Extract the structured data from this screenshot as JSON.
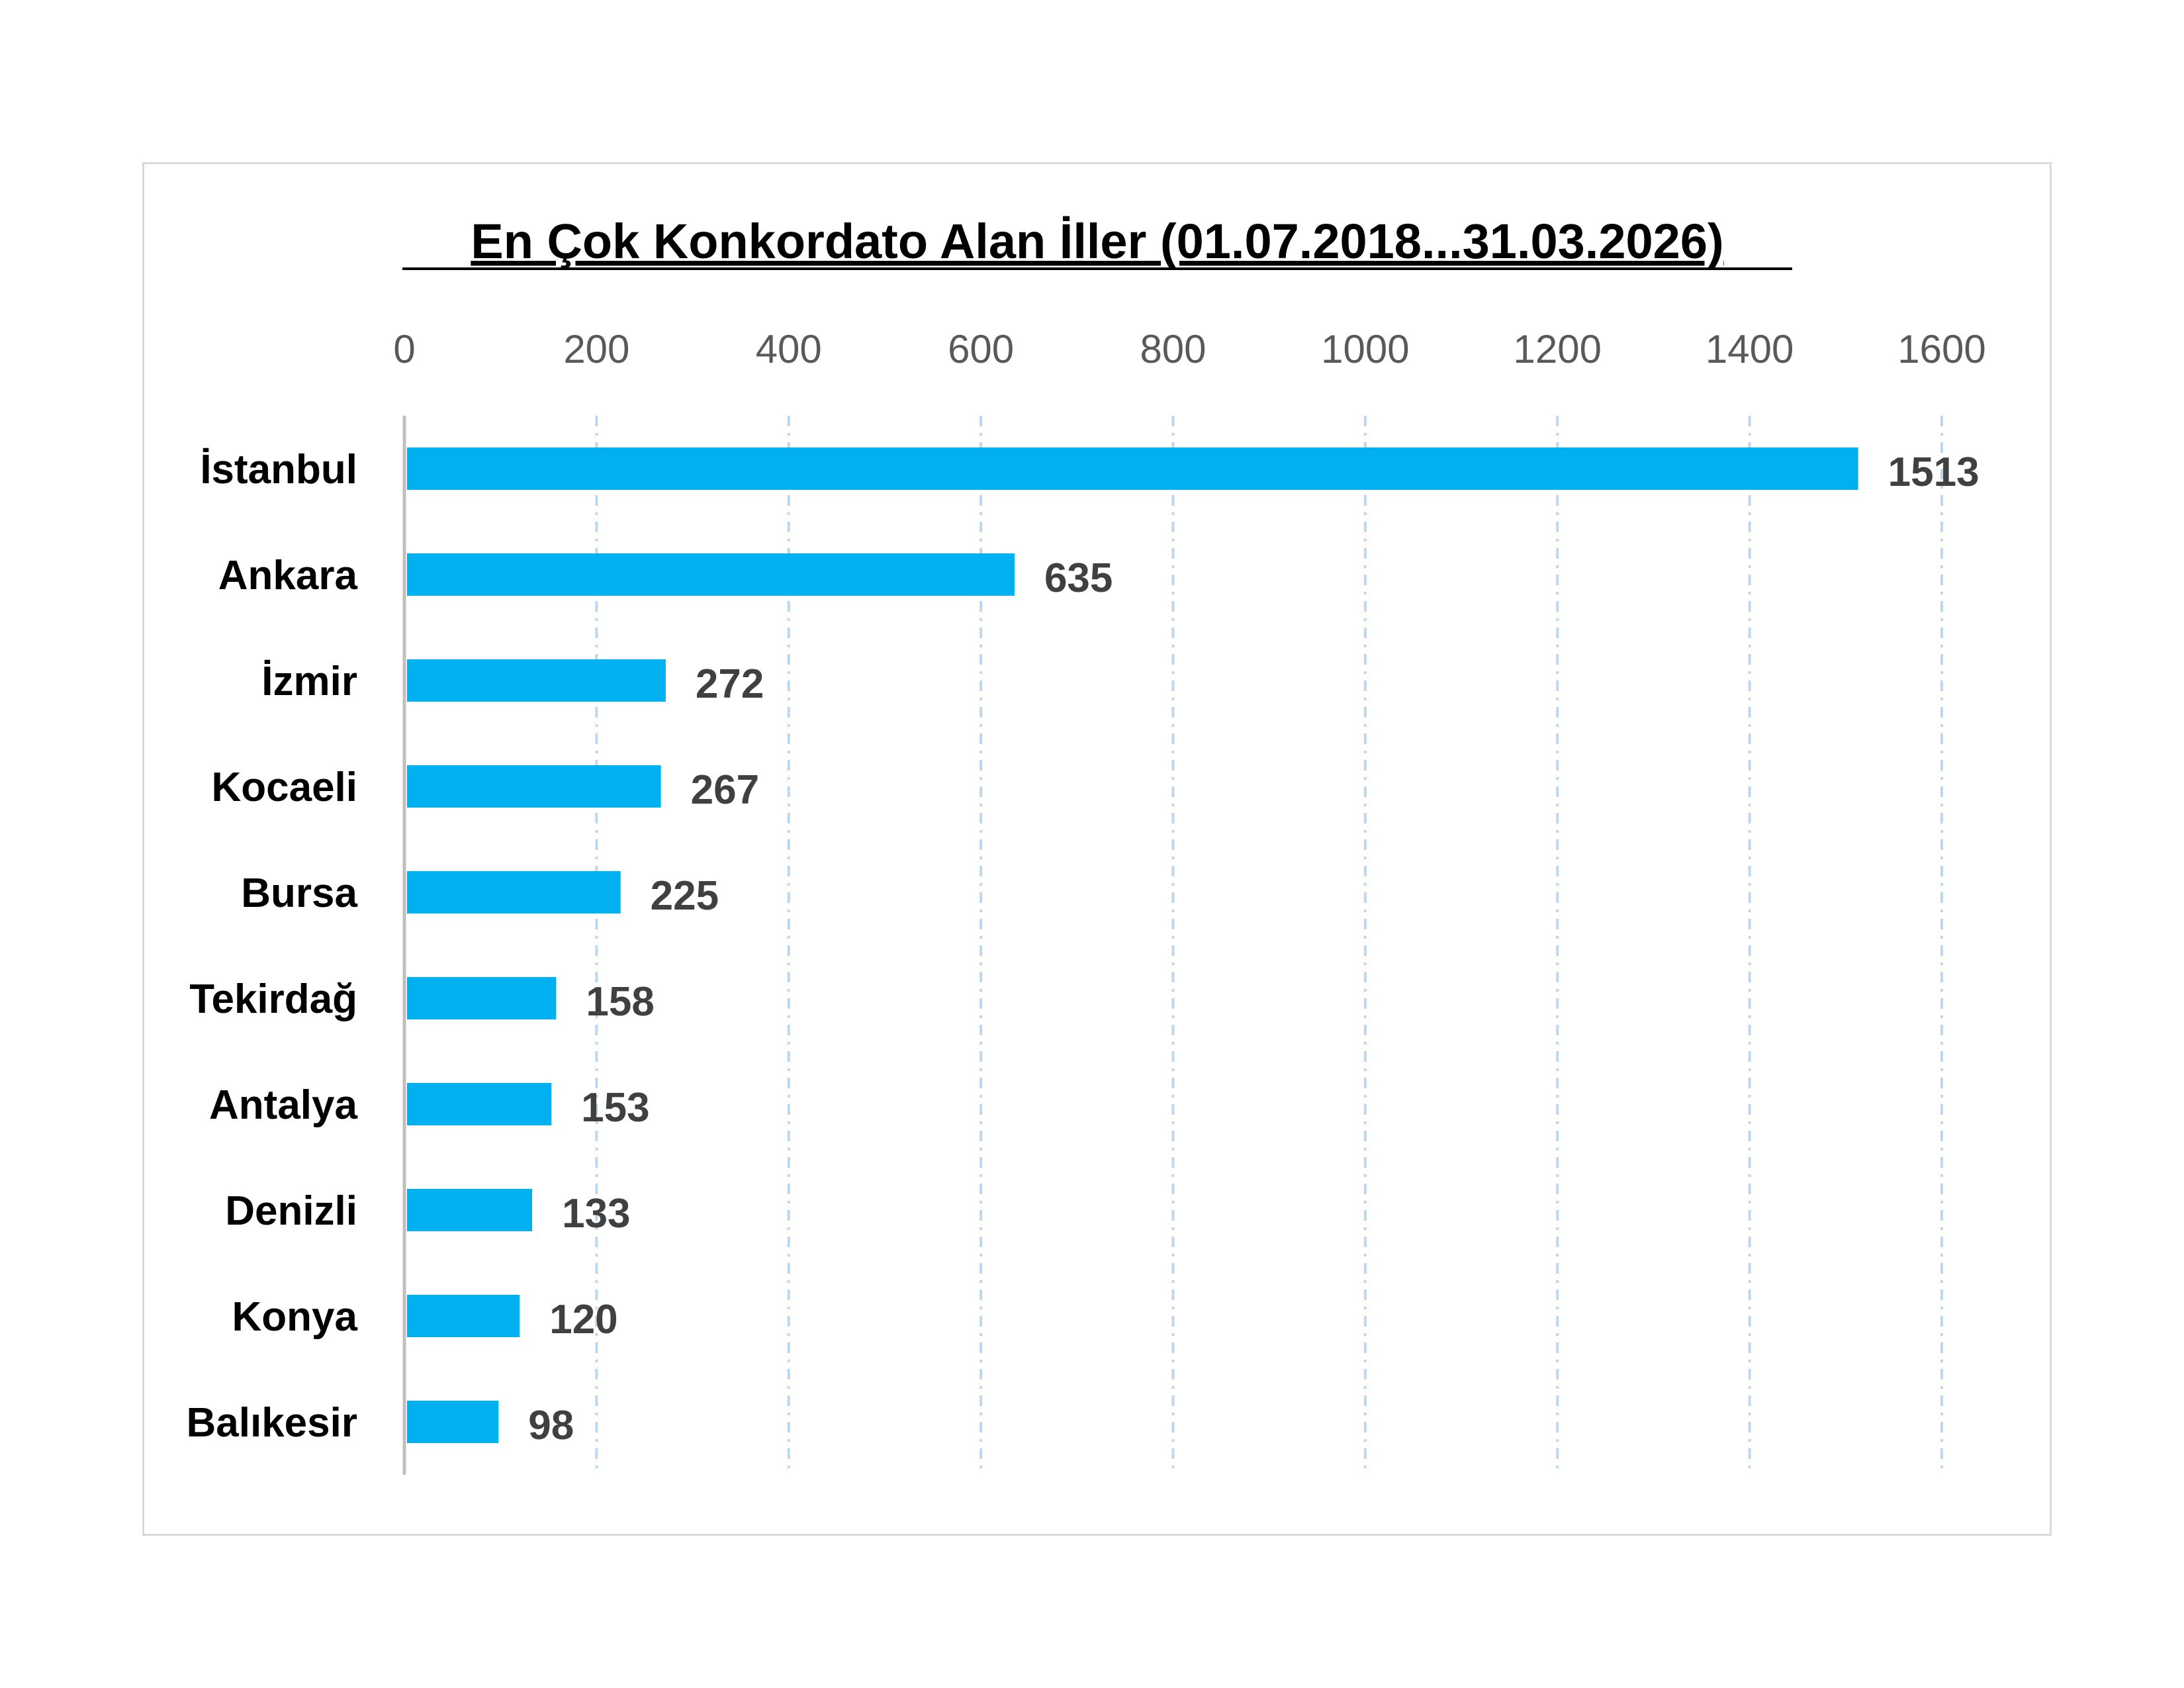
{
  "chart_data": {
    "type": "bar",
    "orientation": "horizontal",
    "title": "En Çok Konkordato Alan İller (01.07.2018...31.03.2026)",
    "categories": [
      "İstanbul",
      "Ankara",
      "İzmir",
      "Kocaeli",
      "Bursa",
      "Tekirdağ",
      "Antalya",
      "Denizli",
      "Konya",
      "Balıkesir"
    ],
    "values": [
      1513,
      635,
      272,
      267,
      225,
      158,
      153,
      133,
      120,
      98
    ],
    "xlim": [
      0,
      1600
    ],
    "xticks": [
      0,
      200,
      400,
      600,
      800,
      1000,
      1200,
      1400,
      1600
    ],
    "xtick_labels": [
      "0",
      "200",
      "400",
      "600",
      "800",
      "1000",
      "1200",
      "1400",
      "1600"
    ],
    "xaxis_position": "top",
    "grid": true,
    "legend": false,
    "bar_color": "#00B0F0",
    "grid_color": "#BDD7EE",
    "axis_color": "#BFBFBF"
  }
}
